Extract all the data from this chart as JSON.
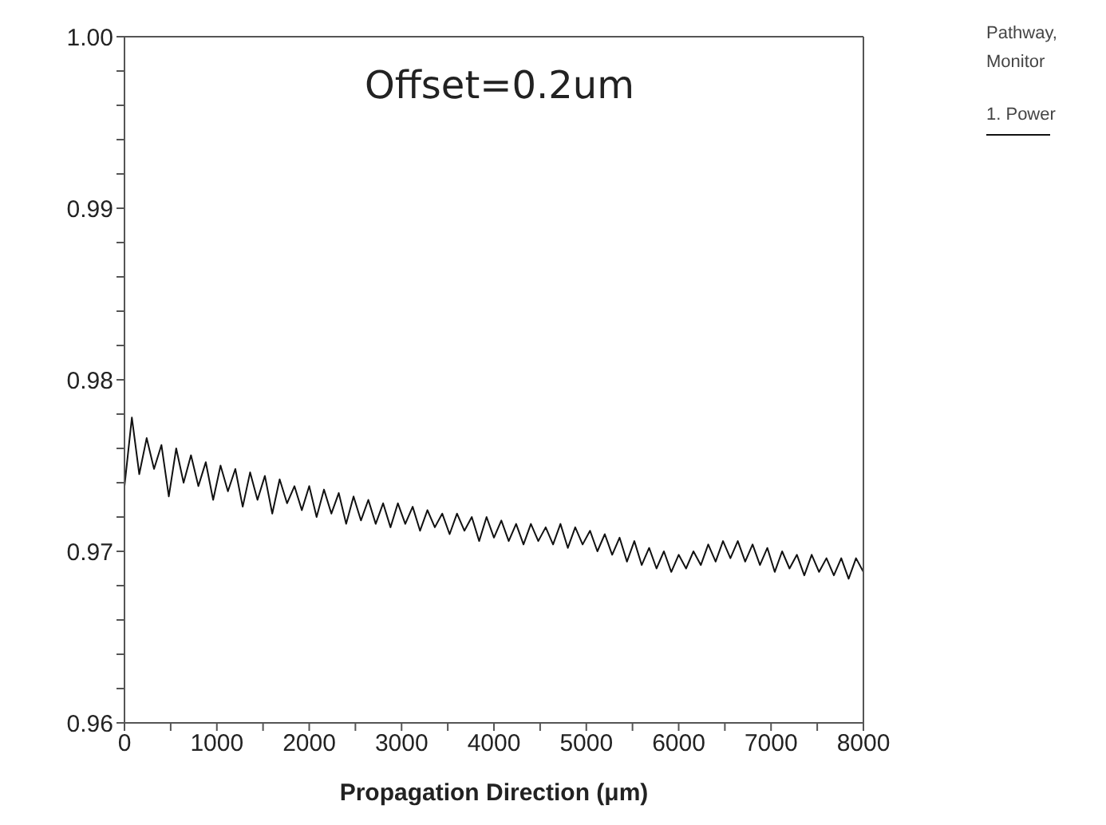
{
  "chart_data": {
    "type": "line",
    "xlabel": "Propagation Direction (μm)",
    "legend_title": "Pathway, Monitor",
    "legend": "right",
    "annotations": [
      "Offset=0.2um"
    ],
    "xlim": [
      0,
      8000
    ],
    "xticks": [
      0,
      {
        "value": 500,
        "label": null
      },
      1000,
      {
        "value": 1500,
        "label": null
      },
      2000,
      {
        "value": 2500,
        "label": null
      },
      3000,
      {
        "value": 3500,
        "label": null
      },
      4000,
      {
        "value": 4500,
        "label": null
      },
      5000,
      {
        "value": 5500,
        "label": null
      },
      6000,
      {
        "value": 6500,
        "label": null
      },
      7000,
      {
        "value": 7500,
        "label": null
      },
      8000
    ],
    "ylim": [
      0.96,
      1.0
    ],
    "yticks": [
      {
        "value": 0.96,
        "label": "0.96"
      },
      {
        "value": 0.962,
        "label": null
      },
      {
        "value": 0.964,
        "label": null
      },
      {
        "value": 0.966,
        "label": null
      },
      {
        "value": 0.968,
        "label": null
      },
      {
        "value": 0.97,
        "label": "0.97"
      },
      {
        "value": 0.972,
        "label": null
      },
      {
        "value": 0.974,
        "label": null
      },
      {
        "value": 0.976,
        "label": null
      },
      {
        "value": 0.978,
        "label": null
      },
      {
        "value": 0.98,
        "label": "0.98"
      },
      {
        "value": 0.982,
        "label": null
      },
      {
        "value": 0.984,
        "label": null
      },
      {
        "value": 0.986,
        "label": null
      },
      {
        "value": 0.988,
        "label": null
      },
      {
        "value": 0.99,
        "label": "0.99"
      },
      {
        "value": 0.992,
        "label": null
      },
      {
        "value": 0.994,
        "label": null
      },
      {
        "value": 0.996,
        "label": null
      },
      {
        "value": 0.998,
        "label": null
      },
      {
        "value": 1.0,
        "label": "1.00"
      }
    ],
    "marker": "none",
    "x": [
      0,
      80,
      160,
      240,
      320,
      400,
      480,
      560,
      640,
      720,
      800,
      880,
      960,
      1040,
      1120,
      1200,
      1280,
      1360,
      1440,
      1520,
      1600,
      1680,
      1760,
      1840,
      1920,
      2000,
      2080,
      2160,
      2240,
      2320,
      2400,
      2480,
      2560,
      2640,
      2720,
      2800,
      2880,
      2960,
      3040,
      3120,
      3200,
      3280,
      3360,
      3440,
      3520,
      3600,
      3680,
      3760,
      3840,
      3920,
      4000,
      4080,
      4160,
      4240,
      4320,
      4400,
      4480,
      4560,
      4640,
      4720,
      4800,
      4880,
      4960,
      5040,
      5120,
      5200,
      5280,
      5360,
      5440,
      5520,
      5600,
      5680,
      5760,
      5840,
      5920,
      6000,
      6080,
      6160,
      6240,
      6320,
      6400,
      6480,
      6560,
      6640,
      6720,
      6800,
      6880,
      6960,
      7040,
      7120,
      7200,
      7280,
      7360,
      7440,
      7520,
      7600,
      7680,
      7760,
      7840,
      7920,
      8000
    ],
    "series": [
      {
        "name": "1. Power",
        "color": "#111111",
        "values": [
          0.9738,
          0.9778,
          0.9745,
          0.9766,
          0.9748,
          0.9762,
          0.9732,
          0.976,
          0.974,
          0.9756,
          0.9738,
          0.9752,
          0.973,
          0.975,
          0.9735,
          0.9748,
          0.9726,
          0.9746,
          0.973,
          0.9744,
          0.9722,
          0.9742,
          0.9728,
          0.9738,
          0.9724,
          0.9738,
          0.972,
          0.9736,
          0.9722,
          0.9734,
          0.9716,
          0.9732,
          0.9718,
          0.973,
          0.9716,
          0.9728,
          0.9714,
          0.9728,
          0.9716,
          0.9726,
          0.9712,
          0.9724,
          0.9714,
          0.9722,
          0.971,
          0.9722,
          0.9712,
          0.972,
          0.9706,
          0.972,
          0.9708,
          0.9718,
          0.9706,
          0.9716,
          0.9704,
          0.9716,
          0.9706,
          0.9714,
          0.9704,
          0.9716,
          0.9702,
          0.9714,
          0.9704,
          0.9712,
          0.97,
          0.971,
          0.9698,
          0.9708,
          0.9694,
          0.9706,
          0.9692,
          0.9702,
          0.969,
          0.97,
          0.9688,
          0.9698,
          0.969,
          0.97,
          0.9692,
          0.9704,
          0.9694,
          0.9706,
          0.9696,
          0.9706,
          0.9694,
          0.9704,
          0.9692,
          0.9702,
          0.9688,
          0.97,
          0.969,
          0.9698,
          0.9686,
          0.9698,
          0.9688,
          0.9696,
          0.9686,
          0.9696,
          0.9684,
          0.9696,
          0.9688
        ]
      }
    ]
  }
}
